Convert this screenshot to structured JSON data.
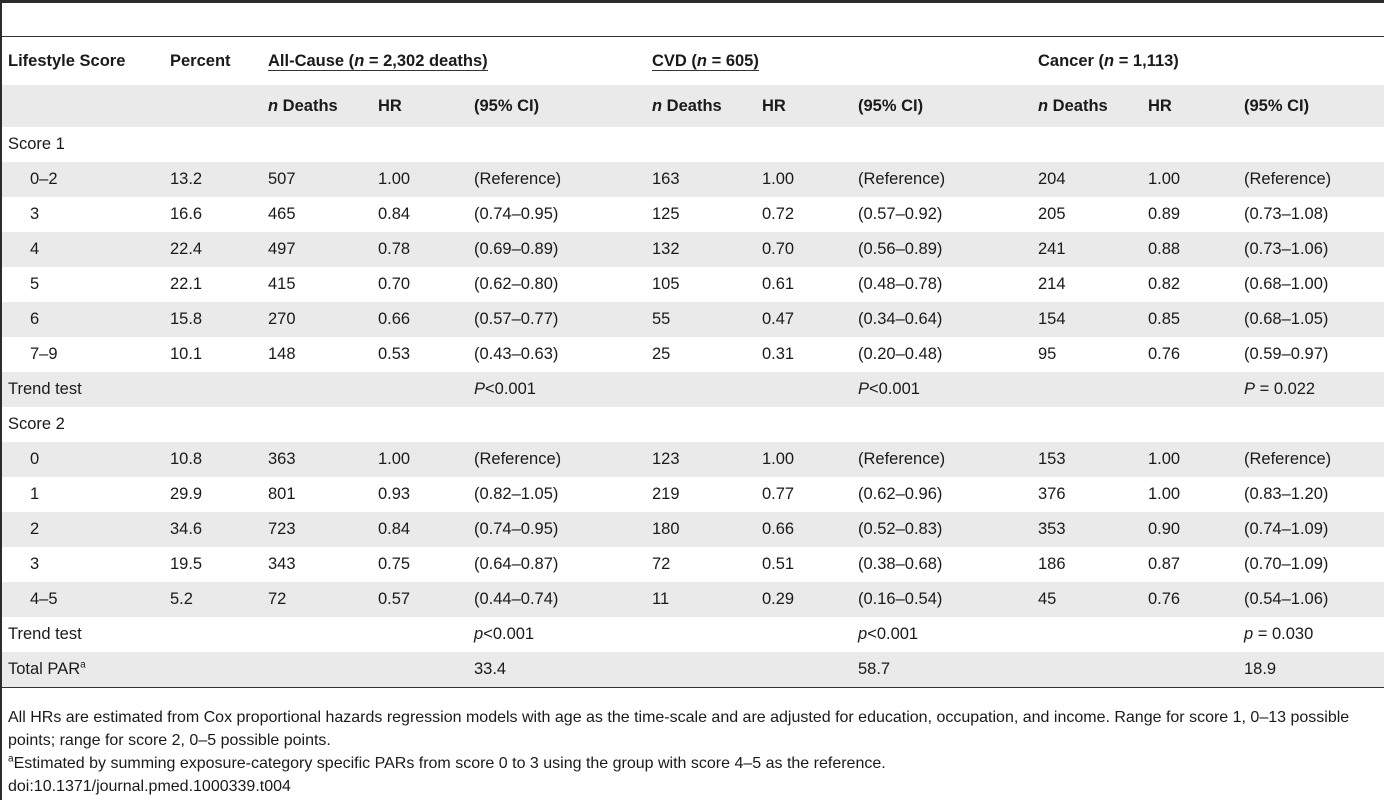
{
  "table": {
    "headers": {
      "lifestyle_score": "Lifestyle Score",
      "percent": "Percent",
      "groups": [
        {
          "prefix": "All-Cause (",
          "n": "n",
          "rest": " = 2,302 deaths)"
        },
        {
          "prefix": "CVD (",
          "n": "n",
          "rest": " = 605)"
        },
        {
          "prefix": "Cancer (",
          "n": "n",
          "rest": " = 1,113)"
        }
      ],
      "sub": {
        "n": "n",
        "deaths": " Deaths",
        "hr": "HR",
        "ci": "(95% CI)"
      }
    },
    "sections": [
      {
        "label": "Score 1",
        "rows": [
          {
            "score": "0–2",
            "percent": "13.2",
            "cells": [
              "507",
              "1.00",
              "(Reference)",
              "163",
              "1.00",
              "(Reference)",
              "204",
              "1.00",
              "(Reference)"
            ]
          },
          {
            "score": "3",
            "percent": "16.6",
            "cells": [
              "465",
              "0.84",
              "(0.74–0.95)",
              "125",
              "0.72",
              "(0.57–0.92)",
              "205",
              "0.89",
              "(0.73–1.08)"
            ]
          },
          {
            "score": "4",
            "percent": "22.4",
            "cells": [
              "497",
              "0.78",
              "(0.69–0.89)",
              "132",
              "0.70",
              "(0.56–0.89)",
              "241",
              "0.88",
              "(0.73–1.06)"
            ]
          },
          {
            "score": "5",
            "percent": "22.1",
            "cells": [
              "415",
              "0.70",
              "(0.62–0.80)",
              "105",
              "0.61",
              "(0.48–0.78)",
              "214",
              "0.82",
              "(0.68–1.00)"
            ]
          },
          {
            "score": "6",
            "percent": "15.8",
            "cells": [
              "270",
              "0.66",
              "(0.57–0.77)",
              "55",
              "0.47",
              "(0.34–0.64)",
              "154",
              "0.85",
              "(0.68–1.05)"
            ]
          },
          {
            "score": "7–9",
            "percent": "10.1",
            "cells": [
              "148",
              "0.53",
              "(0.43–0.63)",
              "25",
              "0.31",
              "(0.20–0.48)",
              "95",
              "0.76",
              "(0.59–0.97)"
            ]
          }
        ],
        "trend": {
          "label": "Trend test",
          "values": [
            {
              "p": "P",
              "rest": "<0.001"
            },
            {
              "p": "P",
              "rest": "<0.001"
            },
            {
              "p": "P",
              "rest": " = 0.022"
            }
          ]
        }
      },
      {
        "label": "Score 2",
        "rows": [
          {
            "score": "0",
            "percent": "10.8",
            "cells": [
              "363",
              "1.00",
              "(Reference)",
              "123",
              "1.00",
              "(Reference)",
              "153",
              "1.00",
              "(Reference)"
            ]
          },
          {
            "score": "1",
            "percent": "29.9",
            "cells": [
              "801",
              "0.93",
              "(0.82–1.05)",
              "219",
              "0.77",
              "(0.62–0.96)",
              "376",
              "1.00",
              "(0.83–1.20)"
            ]
          },
          {
            "score": "2",
            "percent": "34.6",
            "cells": [
              "723",
              "0.84",
              "(0.74–0.95)",
              "180",
              "0.66",
              "(0.52–0.83)",
              "353",
              "0.90",
              "(0.74–1.09)"
            ]
          },
          {
            "score": "3",
            "percent": "19.5",
            "cells": [
              "343",
              "0.75",
              "(0.64–0.87)",
              "72",
              "0.51",
              "(0.38–0.68)",
              "186",
              "0.87",
              "(0.70–1.09)"
            ]
          },
          {
            "score": "4–5",
            "percent": "5.2",
            "cells": [
              "72",
              "0.57",
              "(0.44–0.74)",
              "11",
              "0.29",
              "(0.16–0.54)",
              "45",
              "0.76",
              "(0.54–1.06)"
            ]
          }
        ],
        "trend": {
          "label": "Trend test",
          "values": [
            {
              "p": "p",
              "rest": "<0.001"
            },
            {
              "p": "p",
              "rest": "<0.001"
            },
            {
              "p": "p",
              "rest": " = 0.030"
            }
          ]
        }
      }
    ],
    "total_par": {
      "label": "Total PAR",
      "sup": "a",
      "values": [
        "33.4",
        "58.7",
        "18.9"
      ]
    }
  },
  "notes": {
    "main": "All HRs are estimated from Cox proportional hazards regression models with age as the time-scale and are adjusted for education, occupation, and income. Range for score 1, 0–13 possible points; range for score 2, 0–5 possible points.",
    "footnote_mark": "a",
    "footnote": "Estimated by summing exposure-category specific PARs from score 0 to 3 using the group with score 4–5 as the reference.",
    "doi": "doi:10.1371/journal.pmed.1000339.t004"
  },
  "colors": {
    "shade": "#eaeaea",
    "rule": "#333333"
  }
}
